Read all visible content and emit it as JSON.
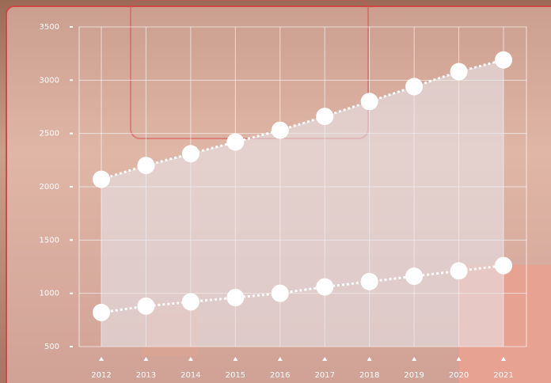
{
  "chart_data": {
    "type": "line",
    "categories": [
      "2012",
      "2013",
      "2014",
      "2015",
      "2016",
      "2017",
      "2018",
      "2019",
      "2020",
      "2021"
    ],
    "series": [
      {
        "color": "#ffffff",
        "values": [
          2070,
          2200,
          2310,
          2420,
          2530,
          2660,
          2800,
          2940,
          3080,
          3190
        ]
      },
      {
        "color": "#ffffff",
        "values": [
          820,
          880,
          920,
          960,
          1000,
          1060,
          1110,
          1160,
          1210,
          1260
        ]
      }
    ],
    "ylim": [
      500,
      3500
    ],
    "yticks": [
      500,
      1000,
      1500,
      2000,
      2500,
      3000,
      3500
    ],
    "grid": true
  }
}
